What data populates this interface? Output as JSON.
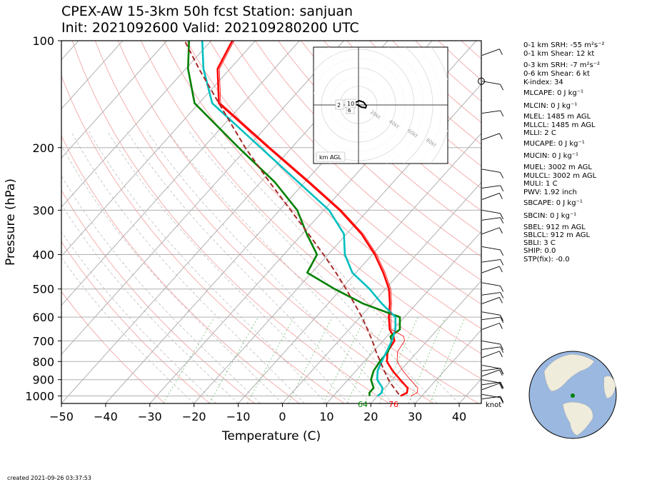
{
  "title": {
    "line1": "CPEX-AW 15-3km  50h fcst  Station: sanjuan",
    "line2": "Init: 2021092600  Valid: 202109280200 UTC"
  },
  "footer": "created 2021-09-26 03:37:53",
  "indices": [
    {
      "label": "0-1 km SRH:",
      "value": "-55 m²s⁻²"
    },
    {
      "label": "0-1 km Shear:",
      "value": "12 kt"
    },
    {
      "label": "0-3 km SRH:",
      "value": "-7 m²s⁻²"
    },
    {
      "label": "0-6 km Shear:",
      "value": "6 kt"
    },
    {
      "label": "K-index:",
      "value": "34"
    },
    {
      "label": "MLCAPE:",
      "value": "0 J kg⁻¹"
    },
    {
      "label": "MLCIN:",
      "value": "0 J kg⁻¹"
    },
    {
      "label": "MLEL:",
      "value": "1485 m AGL"
    },
    {
      "label": "MLLCL:",
      "value": "1485 m AGL"
    },
    {
      "label": "MLLI:",
      "value": "2 C"
    },
    {
      "label": "MUCAPE:",
      "value": "0 J kg⁻¹"
    },
    {
      "label": "MUCIN:",
      "value": "0 J kg⁻¹"
    },
    {
      "label": "MUEL:",
      "value": "3002 m AGL"
    },
    {
      "label": "MULCL:",
      "value": "3002 m AGL"
    },
    {
      "label": "MULI:",
      "value": "1 C"
    },
    {
      "label": "PWV:",
      "value": "1.92 inch"
    },
    {
      "label": "SBCAPE:",
      "value": "0 J kg⁻¹"
    },
    {
      "label": "SBCIN:",
      "value": "0 J kg⁻¹"
    },
    {
      "label": "SBEL:",
      "value": "912 m AGL"
    },
    {
      "label": "SBLCL:",
      "value": "912 m AGL"
    },
    {
      "label": "SBLI:",
      "value": "3 C"
    },
    {
      "label": "SHIP:",
      "value": "0.0"
    },
    {
      "label": "STP(fix):",
      "value": "-0.0"
    }
  ],
  "hodograph": {
    "ring_labels": [
      "20kt",
      "40kt",
      "60kt",
      "80kt"
    ],
    "height_labels": [
      "2",
      "10",
      "6",
      "0"
    ],
    "legend": "km AGL"
  },
  "chart_data": {
    "type": "line",
    "xlabel": "Temperature (C)",
    "ylabel": "Pressure (hPa)",
    "x_ticks": [
      -50,
      -40,
      -30,
      -20,
      -10,
      0,
      10,
      20,
      30,
      40
    ],
    "y_ticks": [
      100,
      200,
      300,
      400,
      500,
      600,
      700,
      800,
      900,
      1000
    ],
    "xlim": [
      -50,
      45
    ],
    "ylim": [
      1050,
      100
    ],
    "skew": true,
    "wind_unit_label": "knot",
    "surface_dewpoint_label": "64",
    "surface_temperature_label": "76",
    "series": [
      {
        "key": "temperature",
        "color": "#ff0000",
        "p": [
          1000,
          980,
          950,
          900,
          850,
          800,
          750,
          700,
          680,
          650,
          600,
          550,
          500,
          450,
          400,
          350,
          300,
          250,
          200,
          150,
          120,
          100
        ],
        "t": [
          25.2,
          26,
          25.2,
          21.8,
          18.3,
          15.1,
          13.2,
          12.6,
          11.5,
          9.2,
          6.5,
          4.0,
          0.8,
          -3.8,
          -9.4,
          -16.6,
          -26.4,
          -39.2,
          -55.2,
          -75.5,
          -82.8,
          -85.2
        ]
      },
      {
        "key": "dewpoint",
        "color": "#008000",
        "p": [
          1000,
          980,
          950,
          900,
          850,
          800,
          750,
          700,
          680,
          650,
          600,
          550,
          500,
          450,
          400,
          350,
          300,
          250,
          200,
          150,
          120,
          100
        ],
        "t": [
          18.2,
          17.5,
          17.5,
          15.2,
          14.0,
          13.5,
          13.3,
          12.0,
          10.8,
          11.5,
          9.0,
          -2.0,
          -11.5,
          -21.0,
          -22.5,
          -29.0,
          -36.0,
          -46.8,
          -62.0,
          -81.0,
          -89.5,
          -95.0
        ]
      },
      {
        "key": "wetbulb",
        "color": "#00bfbf",
        "p": [
          1000,
          980,
          950,
          900,
          850,
          800,
          750,
          700,
          650,
          600,
          550,
          500,
          450,
          400,
          350,
          300,
          250,
          200,
          150,
          120,
          100
        ],
        "t": [
          20.0,
          20.3,
          19.5,
          16.6,
          14.9,
          13.9,
          13.0,
          12.0,
          10.5,
          8.0,
          2.2,
          -3.6,
          -10.8,
          -16.2,
          -20.6,
          -28.8,
          -41.5,
          -57.0,
          -77.0,
          -86.0,
          -92.0
        ]
      },
      {
        "key": "parcel",
        "color": "#a52a2a",
        "dashed": true,
        "p": [
          990,
          912,
          850,
          800,
          750,
          700,
          650,
          600,
          550,
          500,
          450,
          400,
          350,
          300,
          250,
          200,
          150,
          120,
          100
        ],
        "t": [
          24.5,
          19.8,
          16.4,
          13.6,
          10.6,
          7.6,
          4.2,
          0.4,
          -4.0,
          -8.9,
          -14.5,
          -21.0,
          -28.6,
          -37.5,
          -48.0,
          -60.5,
          -75.5,
          -87.0,
          -96.0
        ]
      }
    ]
  }
}
